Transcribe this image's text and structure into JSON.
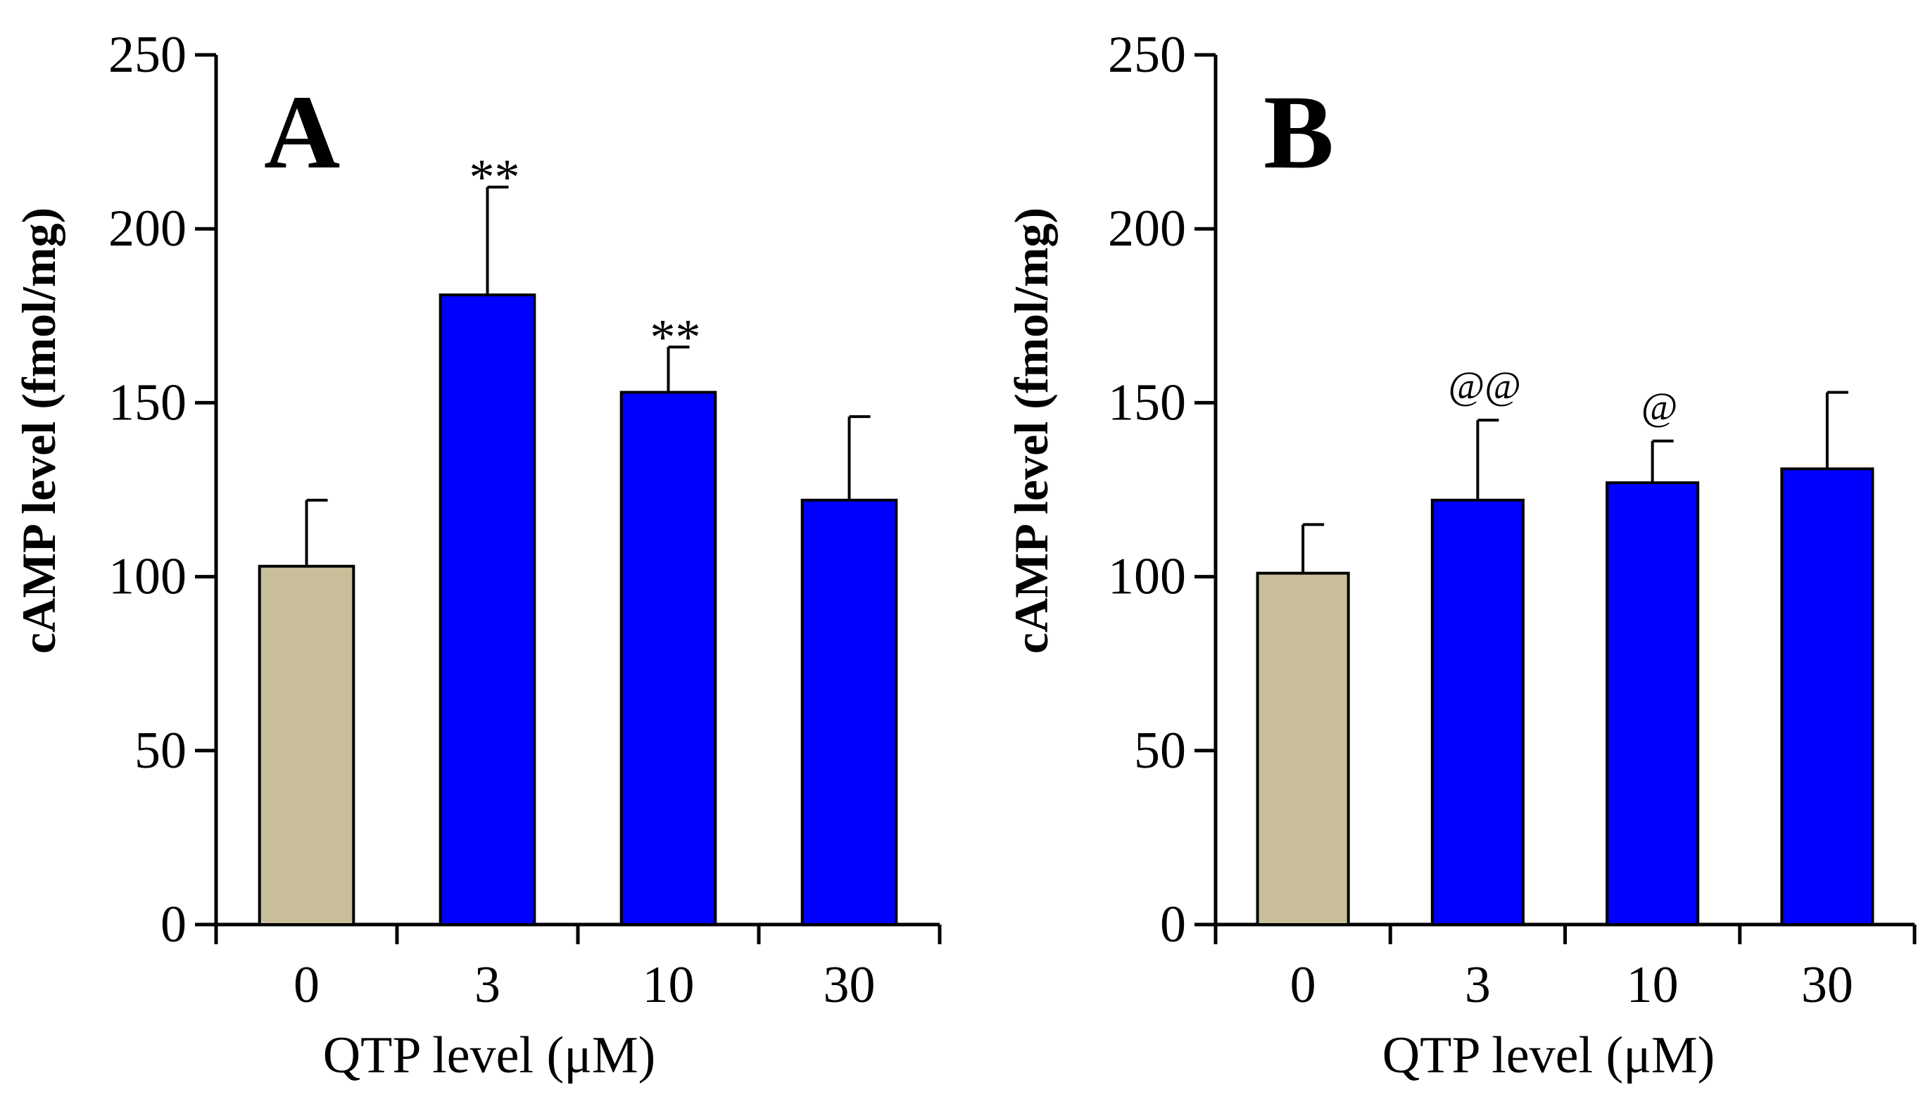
{
  "colors": {
    "control": "#c8be99",
    "treatment": "#0000ff",
    "axis": "#000000",
    "bar_edge": "#000000"
  },
  "chart_data": [
    {
      "type": "bar",
      "panel_label": "A",
      "title": "",
      "xlabel": "QTP level (μM)",
      "ylabel": "cAMP level (fmol/mg)",
      "ylim": [
        0,
        250
      ],
      "yticks": [
        0,
        50,
        100,
        150,
        200,
        250
      ],
      "categories": [
        "0",
        "3",
        "10",
        "30"
      ],
      "values": [
        103,
        181,
        153,
        122
      ],
      "errors": [
        19,
        31,
        13,
        24
      ],
      "bar_colors": [
        "control",
        "treatment",
        "treatment",
        "treatment"
      ],
      "annotations": [
        "",
        "**",
        "**",
        ""
      ],
      "grid": false,
      "legend": "none"
    },
    {
      "type": "bar",
      "panel_label": "B",
      "title": "",
      "xlabel": "QTP level (μM)",
      "ylabel": "cAMP level (fmol/mg)",
      "ylim": [
        0,
        250
      ],
      "yticks": [
        0,
        50,
        100,
        150,
        200,
        250
      ],
      "categories": [
        "0",
        "3",
        "10",
        "30"
      ],
      "values": [
        101,
        122,
        127,
        131
      ],
      "errors": [
        14,
        23,
        12,
        22
      ],
      "bar_colors": [
        "control",
        "treatment",
        "treatment",
        "treatment"
      ],
      "annotations": [
        "",
        "@@",
        "@",
        ""
      ],
      "grid": false,
      "legend": "none"
    }
  ]
}
